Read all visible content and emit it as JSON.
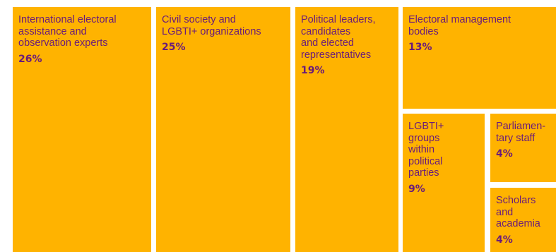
{
  "chart_data": {
    "type": "treemap",
    "title": "",
    "colors": {
      "tile": "#FFB300",
      "text": "#6A1B7A"
    },
    "items": [
      {
        "label": "International electoral\nassistance and\nobservation experts",
        "value": 26,
        "value_label": "26%"
      },
      {
        "label": "Civil society and\nLGBTI+ organizations",
        "value": 25,
        "value_label": "25%"
      },
      {
        "label": "Political leaders,\ncandidates\nand elected\nrepresentatives",
        "value": 19,
        "value_label": "19%"
      },
      {
        "label": "Electoral management\nbodies",
        "value": 13,
        "value_label": "13%"
      },
      {
        "label": "LGBTI+\ngroups\nwithin\npolitical\nparties",
        "value": 9,
        "value_label": "9%"
      },
      {
        "label": "Parliamen-\ntary staff",
        "value": 4,
        "value_label": "4%"
      },
      {
        "label": "Scholars\nand\nacademia",
        "value": 4,
        "value_label": "4%"
      }
    ]
  }
}
